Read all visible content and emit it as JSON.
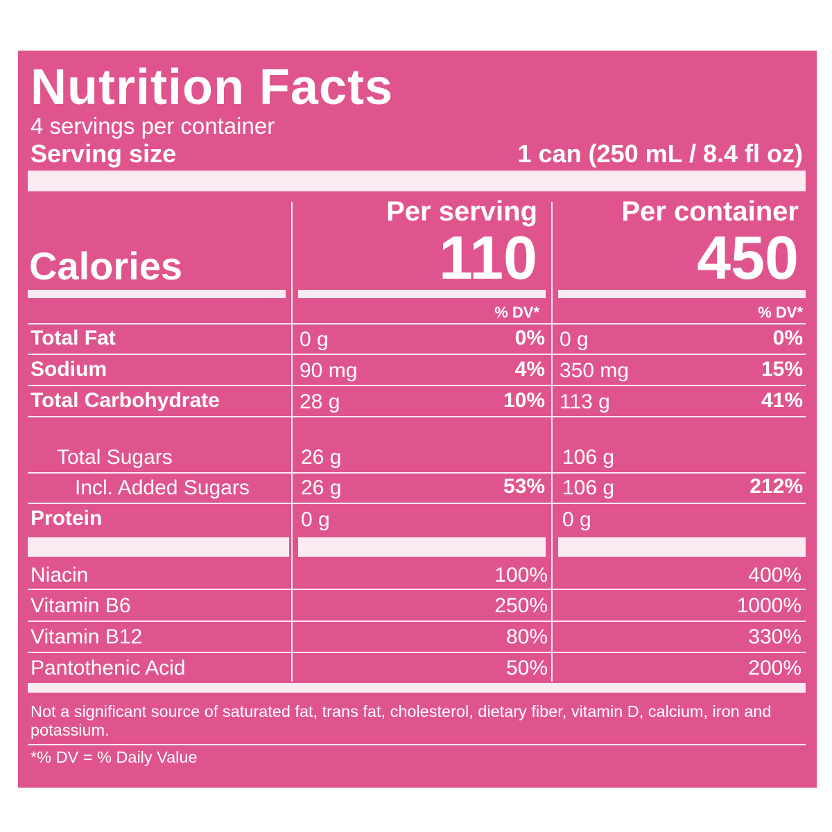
{
  "title": "Nutrition Facts",
  "servings_per_container": "4 servings per container",
  "serving_size_label": "Serving size",
  "serving_size_value": "1 can (250 mL / 8.4 fl oz)",
  "col_headers": {
    "per_serving": "Per serving",
    "per_container": "Per container"
  },
  "calories": {
    "label": "Calories",
    "per_serving": "110",
    "per_container": "450"
  },
  "dv_header": "% DV*",
  "nutrients": [
    {
      "name": "Total Fat",
      "serving_amount": "0 g",
      "serving_dv": "0%",
      "container_amount": "0 g",
      "container_dv": "0%"
    },
    {
      "name": "Sodium",
      "serving_amount": "90 mg",
      "serving_dv": "4%",
      "container_amount": "350 mg",
      "container_dv": "15%"
    },
    {
      "name": "Total Carbohydrate",
      "serving_amount": "28 g",
      "serving_dv": "10%",
      "container_amount": "113 g",
      "container_dv": "41%"
    },
    {
      "name": "Total Sugars",
      "serving_amount": "26 g",
      "serving_dv": "",
      "container_amount": "106 g",
      "container_dv": ""
    },
    {
      "name": "Incl. Added Sugars",
      "serving_amount": "26 g",
      "serving_dv": "53%",
      "container_amount": "106 g",
      "container_dv": "212%"
    },
    {
      "name": "Protein",
      "serving_amount": "0 g",
      "serving_dv": "",
      "container_amount": "0 g",
      "container_dv": ""
    }
  ],
  "vitamins": [
    {
      "name": "Niacin",
      "serving_dv": "100%",
      "container_dv": "400%"
    },
    {
      "name": "Vitamin B6",
      "serving_dv": "250%",
      "container_dv": "1000%"
    },
    {
      "name": "Vitamin B12",
      "serving_dv": "80%",
      "container_dv": "330%"
    },
    {
      "name": "Pantothenic Acid",
      "serving_dv": "50%",
      "container_dv": "200%"
    }
  ],
  "footnote": "Not a significant source of saturated fat, trans fat, cholesterol, dietary fiber, vitamin D, calcium, iron and potassium.",
  "dv_note": "*% DV = % Daily Value",
  "colors": {
    "panel": "#e0548e",
    "text": "#ffffff",
    "rule": "#fbeaf1"
  }
}
